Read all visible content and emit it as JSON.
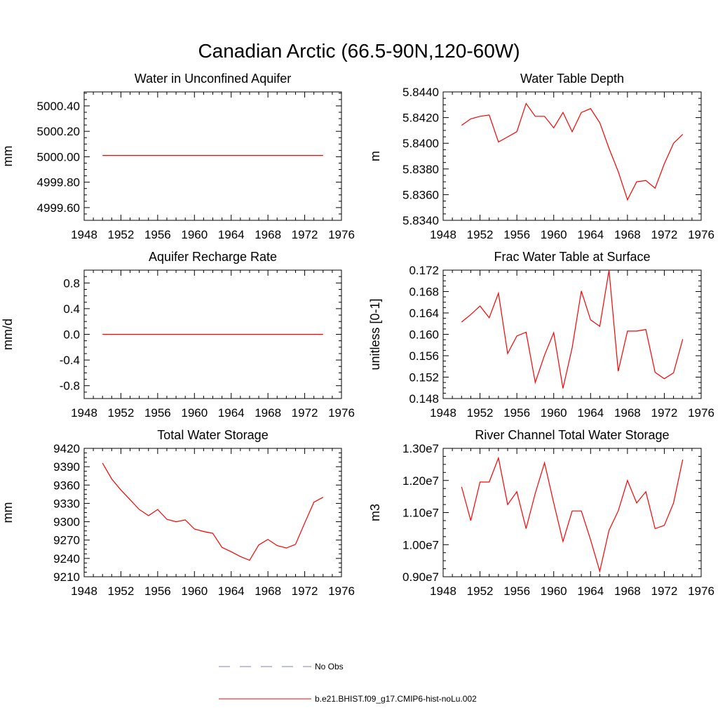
{
  "figure": {
    "title": "Canadian Arctic (66.5-90N,120-60W)"
  },
  "legend": {
    "items": [
      {
        "label": "No Obs",
        "color": "#7f7fbf",
        "dash": true
      },
      {
        "label": "b.e21.BHIST.f09_g17.CMIP6-hist-noLu.002",
        "color": "#ff0000",
        "dash": false
      }
    ]
  },
  "chart_data": [
    {
      "type": "line",
      "title": "Water in Unconfined Aquifer",
      "ylabel": "mm",
      "xlim": [
        1948,
        1976
      ],
      "xticks": [
        "1948",
        "1952",
        "1956",
        "1960",
        "1964",
        "1968",
        "1972",
        "1976"
      ],
      "ylim": [
        4999.5,
        5000.51
      ],
      "yticks": [
        "5000.40",
        "5000.20",
        "5000.00",
        "4999.80",
        "4999.60"
      ],
      "series": [
        {
          "color": "#ff0000",
          "x": [
            1950,
            1951,
            1952,
            1953,
            1954,
            1955,
            1956,
            1957,
            1958,
            1959,
            1960,
            1961,
            1962,
            1963,
            1964,
            1965,
            1966,
            1967,
            1968,
            1969,
            1970,
            1971,
            1972,
            1973,
            1974
          ],
          "y": [
            5000.01,
            5000.01,
            5000.01,
            5000.01,
            5000.01,
            5000.01,
            5000.01,
            5000.01,
            5000.01,
            5000.01,
            5000.01,
            5000.01,
            5000.01,
            5000.01,
            5000.01,
            5000.01,
            5000.01,
            5000.01,
            5000.01,
            5000.01,
            5000.01,
            5000.01,
            5000.01,
            5000.01,
            5000.01
          ]
        }
      ]
    },
    {
      "type": "line",
      "title": "Water Table Depth",
      "ylabel": "m",
      "xlim": [
        1948,
        1976
      ],
      "xticks": [
        "1948",
        "1952",
        "1956",
        "1960",
        "1964",
        "1968",
        "1972",
        "1976"
      ],
      "ylim": [
        5.834,
        5.844
      ],
      "yticks": [
        "5.8440",
        "5.8420",
        "5.8400",
        "5.8380",
        "5.8360",
        "5.8340"
      ],
      "series": [
        {
          "color": "#ff0000",
          "x": [
            1950,
            1951,
            1952,
            1953,
            1954,
            1955,
            1956,
            1957,
            1958,
            1959,
            1960,
            1961,
            1962,
            1963,
            1964,
            1965,
            1966,
            1967,
            1968,
            1969,
            1970,
            1971,
            1972,
            1973,
            1974
          ],
          "y": [
            5.8414,
            5.8419,
            5.8421,
            5.8422,
            5.8401,
            5.8405,
            5.8409,
            5.8431,
            5.8421,
            5.8421,
            5.8412,
            5.8424,
            5.8409,
            5.8424,
            5.8427,
            5.8416,
            5.8396,
            5.8378,
            5.8356,
            5.837,
            5.8371,
            5.8365,
            5.8384,
            5.84,
            5.8407
          ]
        }
      ]
    },
    {
      "type": "line",
      "title": "Aquifer Recharge Rate",
      "ylabel": "mm/d",
      "xlim": [
        1948,
        1976
      ],
      "xticks": [
        "1948",
        "1952",
        "1956",
        "1960",
        "1964",
        "1968",
        "1972",
        "1976"
      ],
      "ylim": [
        -1.0,
        1.0
      ],
      "yticks": [
        "0.8",
        "0.4",
        "0.0",
        "-0.4",
        "-0.8"
      ],
      "series": [
        {
          "color": "#ff0000",
          "x": [
            1950,
            1951,
            1952,
            1953,
            1954,
            1955,
            1956,
            1957,
            1958,
            1959,
            1960,
            1961,
            1962,
            1963,
            1964,
            1965,
            1966,
            1967,
            1968,
            1969,
            1970,
            1971,
            1972,
            1973,
            1974
          ],
          "y": [
            0,
            0,
            0,
            0,
            0,
            0,
            0,
            0,
            0,
            0,
            0,
            0,
            0,
            0,
            0,
            0,
            0,
            0,
            0,
            0,
            0,
            0,
            0,
            0,
            0
          ]
        }
      ]
    },
    {
      "type": "line",
      "title": "Frac Water Table at Surface",
      "ylabel": "unitless [0-1]",
      "xlim": [
        1948,
        1976
      ],
      "xticks": [
        "1948",
        "1952",
        "1956",
        "1960",
        "1964",
        "1968",
        "1972",
        "1976"
      ],
      "ylim": [
        0.148,
        0.172
      ],
      "yticks": [
        "0.172",
        "0.168",
        "0.164",
        "0.160",
        "0.156",
        "0.152",
        "0.148"
      ],
      "series": [
        {
          "color": "#ff0000",
          "x": [
            1950,
            1951,
            1952,
            1953,
            1954,
            1955,
            1956,
            1957,
            1958,
            1959,
            1960,
            1961,
            1962,
            1963,
            1964,
            1965,
            1966,
            1967,
            1968,
            1969,
            1970,
            1971,
            1972,
            1973,
            1974
          ],
          "y": [
            0.1623,
            0.1637,
            0.1653,
            0.1631,
            0.1677,
            0.1564,
            0.1597,
            0.1604,
            0.151,
            0.1561,
            0.1603,
            0.1499,
            0.1575,
            0.1681,
            0.1627,
            0.1615,
            0.172,
            0.1531,
            0.1606,
            0.1606,
            0.1609,
            0.1529,
            0.1517,
            0.1528,
            0.1591
          ]
        }
      ]
    },
    {
      "type": "line",
      "title": "Total Water Storage",
      "ylabel": "mm",
      "xlim": [
        1948,
        1976
      ],
      "xticks": [
        "1948",
        "1952",
        "1956",
        "1960",
        "1964",
        "1968",
        "1972",
        "1976"
      ],
      "ylim": [
        9210,
        9420
      ],
      "yticks": [
        "9420",
        "9390",
        "9360",
        "9330",
        "9300",
        "9270",
        "9240",
        "9210"
      ],
      "series": [
        {
          "color": "#ff0000",
          "x": [
            1950,
            1951,
            1952,
            1953,
            1954,
            1955,
            1956,
            1957,
            1958,
            1959,
            1960,
            1961,
            1962,
            1963,
            1964,
            1965,
            1966,
            1967,
            1968,
            1969,
            1970,
            1971,
            1972,
            1973,
            1974
          ],
          "y": [
            9396,
            9370,
            9352,
            9336,
            9320,
            9310,
            9320,
            9304,
            9300,
            9303,
            9288,
            9284,
            9281,
            9258,
            9251,
            9243,
            9237,
            9262,
            9271,
            9261,
            9257,
            9263,
            9298,
            9332,
            9340
          ]
        }
      ]
    },
    {
      "type": "line",
      "title": "River Channel Total Water Storage",
      "ylabel": "m3",
      "xlim": [
        1948,
        1976
      ],
      "xticks": [
        "1948",
        "1952",
        "1956",
        "1960",
        "1964",
        "1968",
        "1972",
        "1976"
      ],
      "ylim": [
        9000000,
        13000000
      ],
      "yticks": [
        "1.30e7",
        "1.20e7",
        "1.10e7",
        "1.00e7",
        "0.90e7"
      ],
      "series": [
        {
          "color": "#ff0000",
          "x": [
            1950,
            1951,
            1952,
            1953,
            1954,
            1955,
            1956,
            1957,
            1958,
            1959,
            1960,
            1961,
            1962,
            1963,
            1964,
            1965,
            1966,
            1967,
            1968,
            1969,
            1970,
            1971,
            1972,
            1973,
            1974
          ],
          "y": [
            11800000,
            10750000,
            11950000,
            11950000,
            12700000,
            11250000,
            11650000,
            10500000,
            11600000,
            12550000,
            11300000,
            10100000,
            11050000,
            11050000,
            10150000,
            9170000,
            10450000,
            11050000,
            12000000,
            11300000,
            11650000,
            10500000,
            10600000,
            11300000,
            12650000
          ]
        }
      ]
    }
  ]
}
